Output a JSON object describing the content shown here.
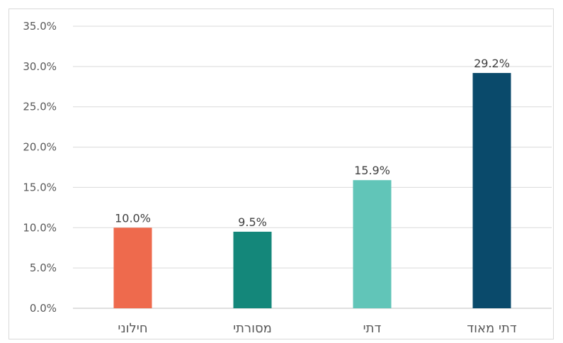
{
  "chart_data": {
    "type": "bar",
    "title": "",
    "xlabel": "",
    "ylabel": "",
    "categories": [
      "חילוני",
      "מסורתי",
      "דתי",
      "דתי מאוד"
    ],
    "values": [
      10.0,
      9.5,
      15.9,
      29.2
    ],
    "data_labels": [
      "10.0%",
      "9.5%",
      "15.9%",
      "29.2%"
    ],
    "colors": [
      "#ee6a4d",
      "#14877a",
      "#61c5b8",
      "#0a4a6b"
    ],
    "ylim": [
      0,
      35
    ],
    "yticks": [
      0,
      5,
      10,
      15,
      20,
      25,
      30,
      35
    ],
    "ytick_labels": [
      "0.0%",
      "5.0%",
      "10.0%",
      "15.0%",
      "20.0%",
      "25.0%",
      "30.0%",
      "35.0%"
    ],
    "grid": true,
    "legend": "none",
    "gridline_color": "#d9d9d9",
    "axis_color": "#bfbfbf"
  }
}
